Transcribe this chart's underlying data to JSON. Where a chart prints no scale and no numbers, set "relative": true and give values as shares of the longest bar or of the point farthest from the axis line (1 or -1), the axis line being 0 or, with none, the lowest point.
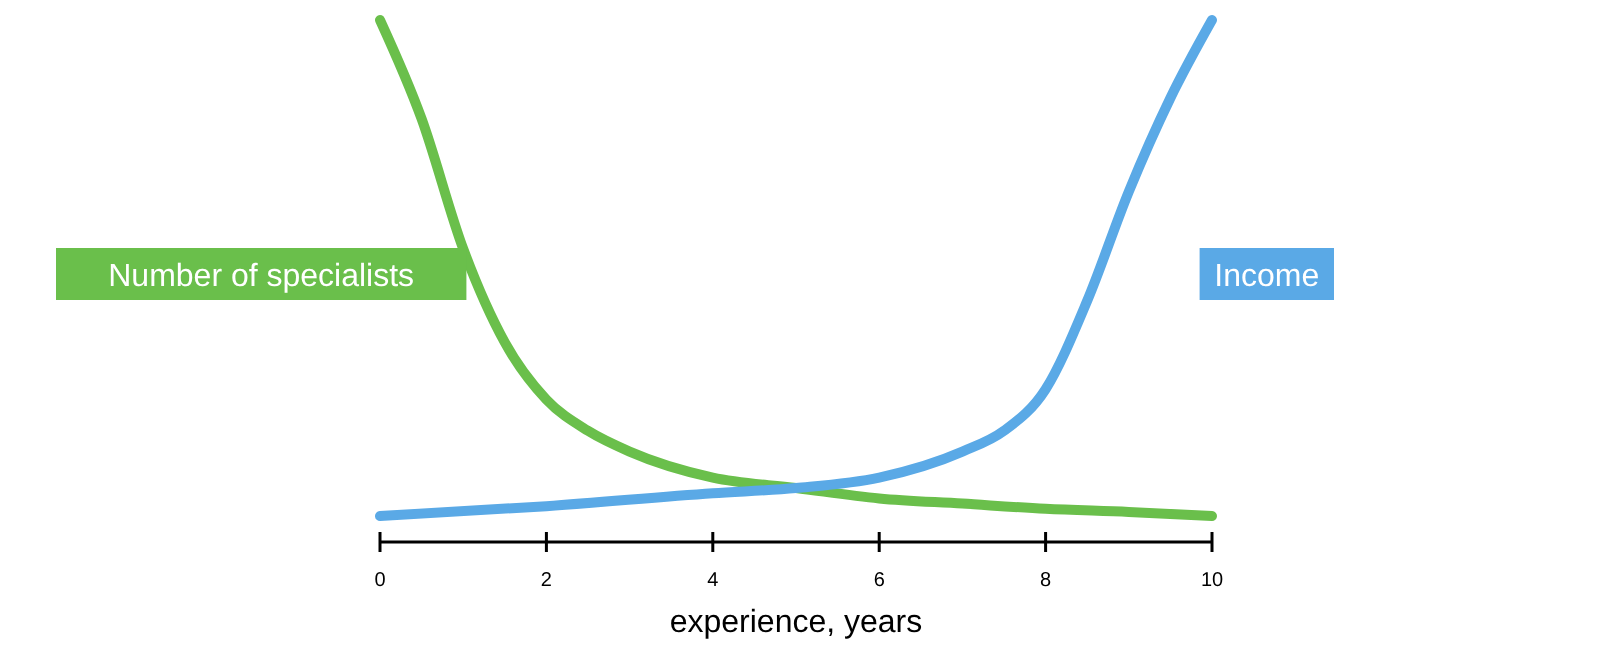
{
  "chart_data": {
    "type": "line",
    "xlabel": "experience, years",
    "relative": true,
    "xlim": [
      0,
      10
    ],
    "xticks": [
      0,
      2,
      4,
      6,
      8,
      10
    ],
    "marker": "none",
    "line_style": "solid",
    "series": [
      {
        "name": "Number of specialists",
        "color": "#6abf4b",
        "x": [
          0,
          0.5,
          1,
          1.5,
          2,
          2.5,
          3,
          4,
          5,
          6,
          7,
          8,
          9,
          10
        ],
        "values": [
          1,
          0.81,
          0.56,
          0.38,
          0.27,
          0.21,
          0.17,
          0.12,
          0.1,
          0.08,
          0.07,
          0.06,
          0.054,
          0.046
        ]
      },
      {
        "name": "Income",
        "color": "#5aa9e6",
        "x": [
          0,
          2,
          4,
          5,
          6,
          7,
          7.5,
          8,
          8.5,
          9,
          9.5,
          10
        ],
        "values": [
          0.046,
          0.065,
          0.09,
          0.1,
          0.12,
          0.17,
          0.21,
          0.29,
          0.46,
          0.67,
          0.85,
          1
        ]
      }
    ]
  }
}
